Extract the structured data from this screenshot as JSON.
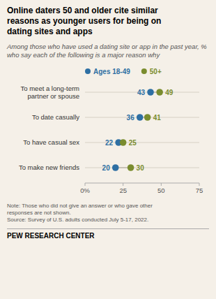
{
  "chart_data": {
    "type": "dot",
    "orientation": "horizontal",
    "title": "Online daters 50 and older cite similar\nreasons as younger users for being on\ndating sites and apps",
    "subtitle": "Among those who have used a dating site or app in the past year, % who say each of the following is a major reason why",
    "categories": [
      "To meet a long-term\npartner or spouse",
      "To date casually",
      "To have casual sex",
      "To make new friends"
    ],
    "series": [
      {
        "name": "Ages 18-49",
        "color": "#2e6fa3",
        "values": [
          43,
          36,
          22,
          20
        ]
      },
      {
        "name": "50+",
        "color": "#7a8c2e",
        "values": [
          49,
          41,
          25,
          30
        ]
      }
    ],
    "xlim": [
      0,
      75
    ],
    "xticks": [
      {
        "value": 0,
        "label": "0%"
      },
      25,
      50,
      75
    ],
    "data_labels": true,
    "legend": "top",
    "grid": false,
    "note": "Note: Those who did not give an answer or who gave other\nresponses are not shown.\nSource: Survey of U.S. adults conducted July 5-17, 2022.",
    "source": "PEW RESEARCH CENTER"
  }
}
